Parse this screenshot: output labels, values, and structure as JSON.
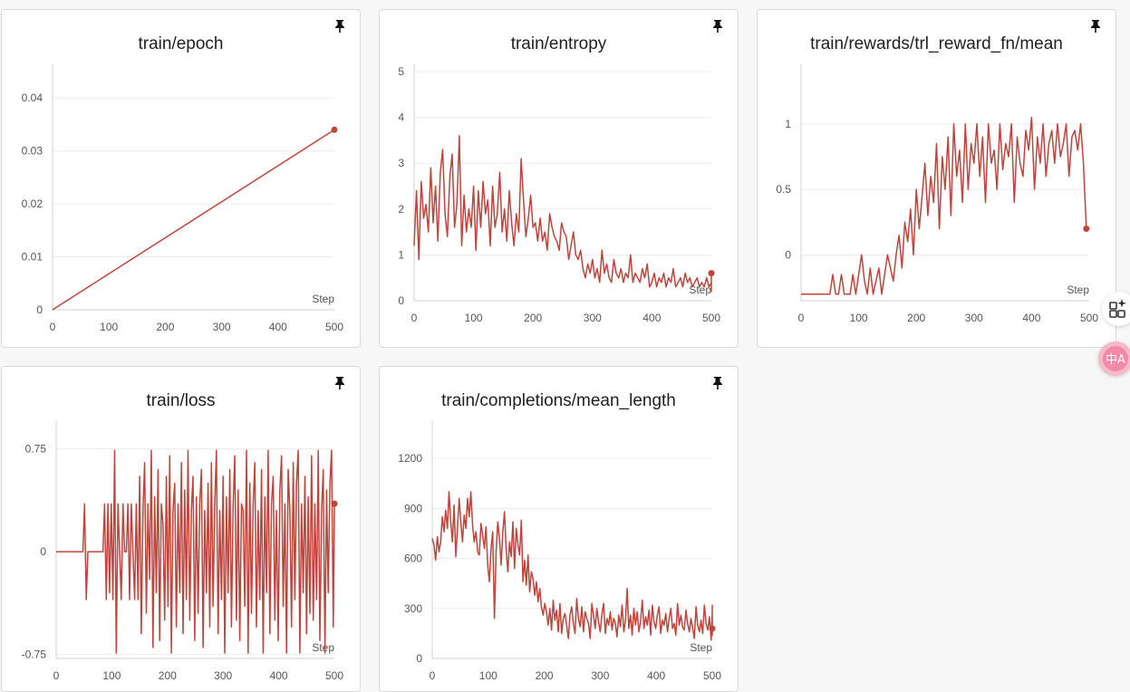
{
  "colors": {
    "series": "#c0443c",
    "grid": "#ececec",
    "axis": "#d0d0d0",
    "tick_text": "#555555"
  },
  "icons": {
    "pin": "pin-icon",
    "apps": "apps-sparkle-icon",
    "translate": "translate-icon"
  },
  "side_buttons": {
    "translate_label": "中A"
  },
  "chart_data": [
    {
      "type": "line",
      "title": "train/epoch",
      "xlabel": "Step",
      "xlim": [
        0,
        500
      ],
      "xticks": [
        0,
        100,
        200,
        300,
        400,
        500
      ],
      "ylim": [
        0,
        0.045
      ],
      "yticks": [
        0,
        0.01,
        0.02,
        0.03,
        0.04
      ],
      "ytick_labels": [
        "0",
        "0.01",
        "0.02",
        "0.03",
        "0.04"
      ],
      "series": [
        {
          "x": [
            0,
            500
          ],
          "y": [
            0,
            0.034
          ]
        }
      ]
    },
    {
      "type": "line",
      "title": "train/entropy",
      "xlabel": "Step",
      "xlim": [
        0,
        500
      ],
      "xticks": [
        0,
        100,
        200,
        300,
        400,
        500
      ],
      "ylim": [
        0,
        5
      ],
      "yticks": [
        0,
        1,
        2,
        3,
        4,
        5
      ],
      "ytick_labels": [
        "0",
        "1",
        "2",
        "3",
        "4",
        "5"
      ],
      "series": [
        {
          "x_start": 0,
          "x_step": 4,
          "y": [
            1.2,
            2.4,
            0.9,
            2.6,
            1.8,
            2.1,
            1.5,
            2.9,
            1.7,
            2.5,
            1.3,
            2.8,
            3.3,
            1.9,
            1.4,
            2.7,
            3.2,
            1.6,
            2.1,
            3.6,
            1.2,
            2.3,
            1.5,
            2.0,
            1.6,
            2.5,
            1.1,
            2.4,
            1.6,
            2.6,
            1.9,
            2.2,
            1.2,
            2.5,
            1.6,
            1.9,
            2.8,
            1.5,
            2.0,
            1.3,
            2.4,
            1.7,
            1.2,
            1.9,
            1.5,
            3.1,
            2.2,
            1.4,
            1.8,
            2.3,
            1.6,
            1.7,
            1.3,
            1.8,
            1.3,
            1.5,
            1.1,
            1.9,
            1.6,
            1.4,
            1.3,
            1.1,
            1.7,
            1.5,
            1.4,
            0.9,
            1.2,
            1.5,
            1.0,
            0.9,
            1.1,
            0.7,
            0.5,
            0.8,
            0.6,
            0.9,
            0.5,
            0.7,
            0.4,
            1.1,
            0.6,
            0.8,
            0.5,
            0.4,
            0.9,
            0.6,
            0.5,
            0.7,
            0.4,
            0.6,
            0.5,
            1.0,
            0.4,
            0.6,
            0.5,
            0.4,
            0.7,
            0.5,
            0.8,
            0.3,
            0.4,
            0.6,
            0.3,
            0.5,
            0.4,
            0.6,
            0.3,
            0.5,
            0.4,
            0.7,
            0.3,
            0.4,
            0.5,
            0.3,
            0.6,
            0.4,
            0.5,
            0.3,
            0.4,
            0.5,
            0.3,
            0.4,
            0.3,
            0.5,
            0.3,
            0.4,
            0.2,
            0.4,
            0.3,
            0.5,
            0.3,
            0.4,
            0.3,
            0.2,
            0.4,
            0.3,
            0.5,
            0.2,
            0.4,
            0.3,
            0.4,
            0.3,
            0.2,
            0.4,
            0.3,
            0.4,
            0.3,
            0.2,
            0.3,
            0.4,
            0.3,
            0.2,
            0.5,
            0.3,
            0.4,
            0.3,
            0.2,
            0.4,
            0.3,
            0.2,
            0.4,
            0.3,
            0.3,
            0.2,
            0.4,
            0.3,
            0.3,
            0.4,
            0.2,
            0.3,
            0.3,
            0.4,
            0.2,
            0.3,
            0.3,
            0.4,
            0.2,
            0.3,
            0.4,
            0.3,
            0.2,
            0.3,
            0.3,
            0.2,
            0.4,
            0.3,
            0.3,
            0.2,
            0.3,
            0.4,
            0.2,
            0.3,
            0.3,
            0.2,
            0.4,
            0.3,
            0.2,
            0.3,
            0.3,
            0.2,
            0.3,
            0.4,
            0.2,
            0.3,
            0.3,
            0.2,
            0.3,
            0.2,
            0.4,
            0.3,
            0.2,
            0.3,
            0.3,
            0.2,
            0.3,
            0.2,
            0.3,
            0.3,
            0.2,
            0.3,
            0.4,
            0.2,
            0.3,
            0.3,
            0.2,
            0.3,
            0.2,
            0.4,
            0.3,
            0.2,
            0.3,
            0.3,
            0.2,
            0.3,
            0.4,
            0.2,
            0.3,
            0.3,
            0.2,
            0.4,
            0.3,
            0.2,
            0.3,
            0.3,
            0.2,
            0.4,
            0.3,
            0.3,
            0.2,
            0.3,
            0.4,
            0.2,
            0.3,
            0.3,
            0.2,
            0.3,
            0.3,
            0.2,
            0.3,
            0.4,
            0.2,
            0.3,
            0.3,
            0.2,
            0.3,
            0.3,
            0.2,
            0.4,
            0.3,
            0.2,
            0.3,
            0.3,
            0.2,
            0.3,
            0.4,
            0.2,
            0.3,
            0.3,
            0.2,
            0.4,
            0.3,
            0.6
          ]
        }
      ]
    },
    {
      "type": "line",
      "title": "train/rewards/trl_reward_fn/mean",
      "xlabel": "Step",
      "xlim": [
        0,
        500
      ],
      "xticks": [
        0,
        100,
        200,
        300,
        400,
        500
      ],
      "ylim": [
        -0.35,
        1.4
      ],
      "yticks": [
        0,
        0.5,
        1
      ],
      "ytick_labels": [
        "0",
        "0.5",
        "1"
      ],
      "series": [
        {
          "x_start": 0,
          "x_step": 5,
          "y": [
            -0.3,
            -0.3,
            -0.3,
            -0.3,
            -0.3,
            -0.3,
            -0.3,
            -0.3,
            -0.3,
            -0.3,
            -0.3,
            -0.15,
            -0.3,
            -0.3,
            -0.15,
            -0.3,
            -0.3,
            -0.3,
            -0.15,
            -0.3,
            -0.15,
            0.0,
            -0.2,
            -0.3,
            -0.1,
            -0.3,
            -0.2,
            -0.1,
            -0.3,
            -0.15,
            0.0,
            -0.1,
            -0.2,
            0.0,
            0.15,
            -0.1,
            0.25,
            0.1,
            0.35,
            0.0,
            0.5,
            0.2,
            0.45,
            0.7,
            0.3,
            0.6,
            0.4,
            0.85,
            0.2,
            0.75,
            0.5,
            0.9,
            0.3,
            1.0,
            0.6,
            0.8,
            0.4,
            1.0,
            0.5,
            0.85,
            0.7,
            1.0,
            0.6,
            0.9,
            0.4,
            1.0,
            0.7,
            0.8,
            0.5,
            1.0,
            0.65,
            0.85,
            0.75,
            1.0,
            0.4,
            0.9,
            0.7,
            0.6,
            0.95,
            0.8,
            1.05,
            0.5,
            0.9,
            0.7,
            1.0,
            0.6,
            0.85,
            0.95,
            0.7,
            1.0,
            0.75,
            0.85,
            1.0,
            0.6,
            0.9,
            0.95,
            0.8,
            1.0,
            0.7,
            0.2
          ]
        }
      ]
    },
    {
      "type": "line",
      "title": "train/loss",
      "xlabel": "Step",
      "xlim": [
        0,
        500
      ],
      "xticks": [
        0,
        100,
        200,
        300,
        400,
        500
      ],
      "ylim": [
        -0.78,
        0.9
      ],
      "yticks": [
        -0.75,
        0,
        0.75
      ],
      "ytick_labels": [
        "-0.75",
        "0",
        "0.75"
      ],
      "series": [
        {
          "x_start": 0,
          "x_step": 3,
          "y": [
            0,
            0,
            0,
            0,
            0,
            0,
            0,
            0,
            0,
            0,
            0,
            0,
            0,
            0,
            0,
            0,
            0,
            0.35,
            -0.35,
            0,
            0,
            0,
            0,
            0,
            0,
            0,
            0,
            0,
            0,
            0.35,
            -0.35,
            0.35,
            -0.3,
            0.35,
            -0.35,
            0.74,
            -0.74,
            0.35,
            0,
            -0.35,
            0.35,
            0,
            0,
            0.35,
            -0.35,
            0.35,
            0,
            -0.35,
            0.35,
            -0.35,
            0.55,
            -0.6,
            0.3,
            0.65,
            -0.45,
            0.35,
            -0.2,
            0.74,
            -0.7,
            0.4,
            -0.3,
            0.6,
            -0.65,
            0.35,
            0.2,
            -0.5,
            0.55,
            -0.4,
            0.7,
            -0.74,
            0.3,
            0.5,
            -0.55,
            0.35,
            -0.3,
            0.65,
            -0.6,
            0.45,
            -0.35,
            0.74,
            -0.5,
            0.3,
            0.55,
            -0.65,
            0.4,
            -0.45,
            0.35,
            0.6,
            -0.7,
            0.3,
            -0.3,
            0.5,
            -0.55,
            0.65,
            -0.4,
            0.35,
            0.74,
            -0.6,
            0.3,
            -0.35,
            0.55,
            -0.74,
            0.4,
            -0.3,
            0.6,
            -0.55,
            0.35,
            0.7,
            -0.5,
            0.45,
            -0.65,
            0.35,
            0.3,
            -0.4,
            0.74,
            -0.74,
            0.5,
            -0.45,
            0.35,
            0.65,
            -0.55,
            0.3,
            -0.35,
            0.6,
            -0.74,
            0.4,
            -0.3,
            0.74,
            -0.6,
            0.35,
            0.55,
            -0.5,
            0.3,
            -0.65,
            0.45,
            0.7,
            -0.4,
            0.35,
            -0.74,
            0.6,
            0.3,
            -0.55,
            0.65,
            -0.35,
            0.5,
            0.74,
            -0.74,
            0.35,
            -0.3,
            0.55,
            -0.6,
            0.4,
            -0.45,
            0.7,
            -0.5,
            0.35,
            -0.35,
            0.74,
            -0.65,
            0.3,
            0.6,
            -0.74,
            0.45,
            -0.3,
            0.5,
            0.74,
            -0.55,
            0.35,
            0.35
          ]
        }
      ]
    },
    {
      "type": "line",
      "title": "train/completions/mean_length",
      "xlabel": "Step",
      "xlim": [
        0,
        500
      ],
      "xticks": [
        0,
        100,
        200,
        300,
        400,
        500
      ],
      "ylim": [
        0,
        1380
      ],
      "yticks": [
        0,
        300,
        600,
        900,
        1200
      ],
      "ytick_labels": [
        "0",
        "300",
        "600",
        "900",
        "1200"
      ],
      "series": [
        {
          "x_start": 0,
          "x_step": 3,
          "y": [
            720,
            680,
            590,
            730,
            640,
            700,
            850,
            760,
            890,
            780,
            1000,
            820,
            700,
            920,
            610,
            780,
            960,
            820,
            700,
            860,
            780,
            960,
            850,
            1000,
            800,
            700,
            760,
            640,
            620,
            810,
            740,
            660,
            790,
            560,
            460,
            660,
            760,
            240,
            640,
            820,
            720,
            560,
            760,
            880,
            650,
            520,
            700,
            610,
            820,
            540,
            780,
            680,
            620,
            830,
            460,
            590,
            440,
            620,
            400,
            520,
            480,
            380,
            460,
            340,
            420,
            310,
            260,
            330,
            280,
            200,
            300,
            170,
            350,
            230,
            290,
            160,
            330,
            150,
            240,
            270,
            200,
            120,
            260,
            310,
            210,
            150,
            360,
            240,
            190,
            310,
            160,
            280,
            240,
            210,
            120,
            330,
            260,
            180,
            300,
            220,
            160,
            270,
            330,
            150,
            240,
            200,
            280,
            170,
            240,
            210,
            130,
            260,
            190,
            320,
            160,
            230,
            420,
            180,
            260,
            140,
            300,
            200,
            280,
            160,
            220,
            350,
            180,
            250,
            200,
            290,
            140,
            320,
            220,
            180,
            260,
            310,
            150,
            230,
            200,
            270,
            160,
            240,
            300,
            180,
            210,
            140,
            330,
            200,
            260,
            190,
            170,
            290,
            210,
            160,
            240,
            180,
            120,
            310,
            200,
            160,
            230,
            150,
            320,
            210,
            170,
            250,
            110,
            280,
            200,
            190,
            240,
            140,
            230,
            320,
            180
          ]
        }
      ]
    }
  ]
}
